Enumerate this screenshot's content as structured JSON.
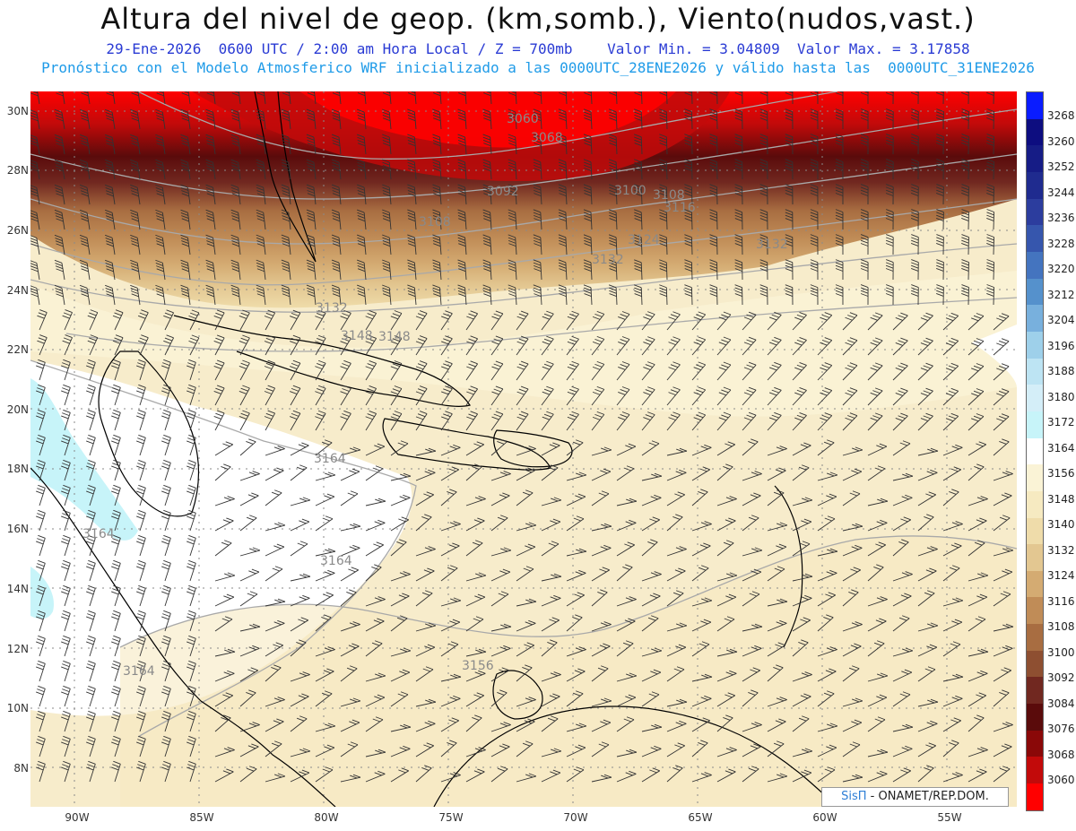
{
  "header": {
    "title": "Altura del nivel de geop. (km,somb.), Viento(nudos,vast.)",
    "subtitle_line1": "29-Ene-2026  0600 UTC / 2:00 am Hora Local / Z = 700mb    Valor Min. = 3.04809  Valor Max. = 3.17858",
    "subtitle_line2": "Pronóstico con el Modelo Atmosferico WRF inicializado a las 0000UTC_28ENE2026 y válido hasta las  0000UTC_31ENE2026"
  },
  "axes": {
    "lat_labels": [
      "30N",
      "28N",
      "26N",
      "24N",
      "22N",
      "20N",
      "18N",
      "16N",
      "14N",
      "12N",
      "10N",
      "8N"
    ],
    "lon_labels": [
      "90W",
      "85W",
      "80W",
      "75W",
      "70W",
      "65W",
      "60W",
      "55W"
    ]
  },
  "colorbar": {
    "levels": [
      "3268",
      "3260",
      "3252",
      "3244",
      "3236",
      "3228",
      "3220",
      "3212",
      "3204",
      "3196",
      "3188",
      "3180",
      "3172",
      "3164",
      "3156",
      "3148",
      "3140",
      "3132",
      "3124",
      "3116",
      "3108",
      "3100",
      "3092",
      "3084",
      "3076",
      "3068",
      "3060"
    ],
    "colors": [
      "#0a1cff",
      "#0d0d80",
      "#161c86",
      "#1f2b8f",
      "#2c3d9e",
      "#3656ad",
      "#4474bf",
      "#5591cc",
      "#78b0dd",
      "#9ed0ea",
      "#bde4f3",
      "#d4eef8",
      "#c7f4f9",
      "#ffffff",
      "#faf3d6",
      "#f6eac1",
      "#efdcaa",
      "#e3c791",
      "#d4ab72",
      "#c08c57",
      "#a86d41",
      "#8e4f31",
      "#712820",
      "#5a0b0b",
      "#8a0808",
      "#c20a0a",
      "#ff0000"
    ]
  },
  "contour_labels": [
    "3060",
    "3068",
    "3092",
    "3100",
    "3108",
    "3116",
    "3108",
    "3124",
    "3132",
    "3132",
    "3132",
    "3148",
    "3148",
    "3164",
    "3164",
    "3164",
    "3156",
    "3164"
  ],
  "credit": {
    "brand": "SisΠ",
    "text": " - ONAMET/REP.DOM."
  }
}
